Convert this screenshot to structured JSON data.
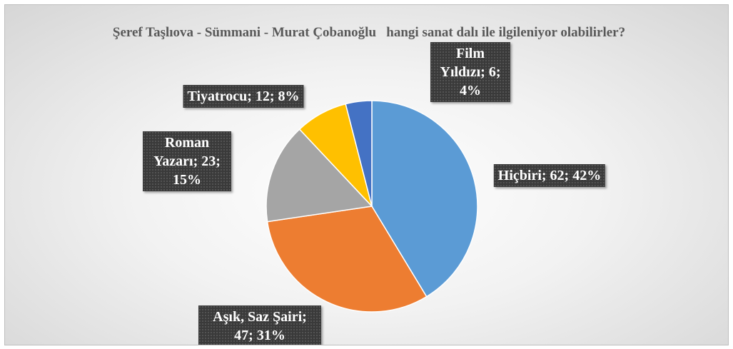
{
  "chart_data": {
    "type": "pie",
    "title": "Şeref Taşlıova - Sümmani - Murat Çobanoğlu   hangi sanat dalı ile ilgileniyor olabilirler?",
    "categories": [
      "Hiçbiri",
      "Aşık, Saz Şairi",
      "Roman Yazarı",
      "Tiyatrocu",
      "Film Yıldızı"
    ],
    "values": [
      62,
      47,
      23,
      12,
      6
    ],
    "value_labels": [
      "Hiçbiri; 62; 42%",
      "Aşık, Saz Şairi; 47; 31%",
      "Roman Yazarı; 23; 15%",
      "Tiyatrocu; 12; 8%",
      "Film Yıldızı; 6; 4%"
    ],
    "colors": [
      "#5b9bd5",
      "#ed7d31",
      "#a5a5a5",
      "#ffc000",
      "#4472c4"
    ]
  }
}
